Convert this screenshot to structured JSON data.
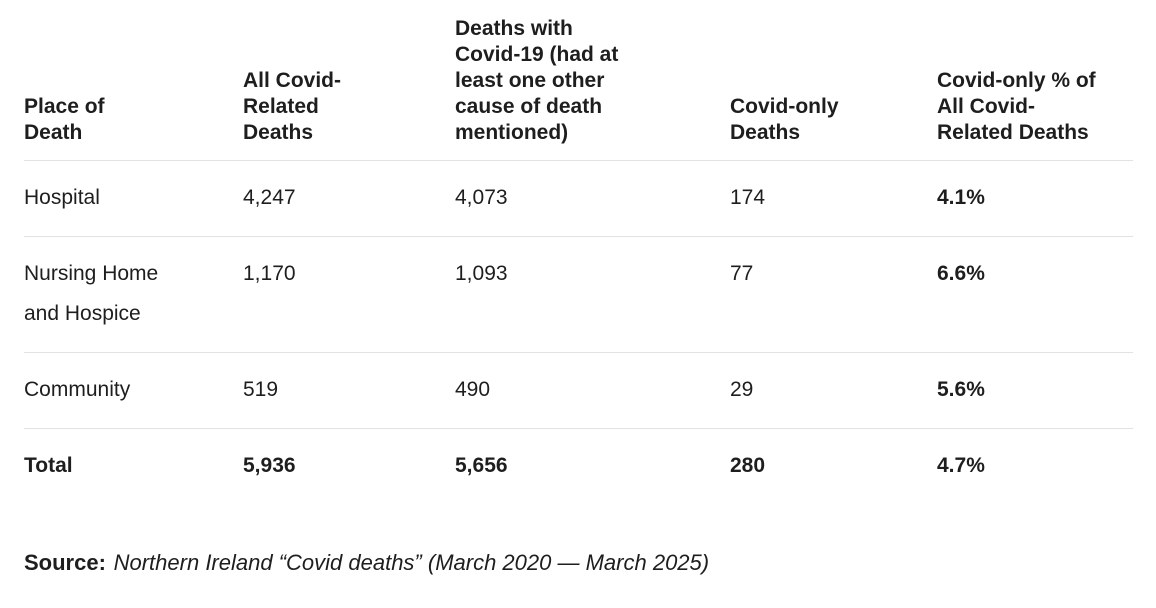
{
  "table": {
    "columns": [
      {
        "label": "Place of\nDeath"
      },
      {
        "label": "All Covid-\nRelated\nDeaths"
      },
      {
        "label": "Deaths with\nCovid-19 (had at\nleast one other\ncause of death\nmentioned)"
      },
      {
        "label": "Covid-only\nDeaths"
      },
      {
        "label": "Covid-only % of\nAll Covid-\nRelated Deaths"
      }
    ],
    "rows": [
      {
        "place": "Hospital",
        "all_covid_related": "4,247",
        "deaths_with_covid": "4,073",
        "covid_only": "174",
        "covid_only_pct": "4.1%"
      },
      {
        "place": "Nursing Home\nand Hospice",
        "all_covid_related": "1,170",
        "deaths_with_covid": "1,093",
        "covid_only": "77",
        "covid_only_pct": "6.6%"
      },
      {
        "place": "Community",
        "all_covid_related": "519",
        "deaths_with_covid": "490",
        "covid_only": "29",
        "covid_only_pct": "5.6%"
      },
      {
        "place": "Total",
        "all_covid_related": "5,936",
        "deaths_with_covid": "5,656",
        "covid_only": "280",
        "covid_only_pct": "4.7%"
      }
    ]
  },
  "source": {
    "label": "Source:",
    "text": "Northern Ireland “Covid deaths” (March 2020 — March 2025)"
  },
  "colors": {
    "text": "#1e1e1e",
    "divider": "#e2e2e2",
    "background": "#ffffff"
  },
  "chart_data": {
    "type": "table",
    "title": "",
    "columns": [
      "Place of Death",
      "All Covid-Related Deaths",
      "Deaths with Covid-19 (had at least one other cause of death mentioned)",
      "Covid-only Deaths",
      "Covid-only % of All Covid-Related Deaths"
    ],
    "rows": [
      [
        "Hospital",
        4247,
        4073,
        174,
        "4.1%"
      ],
      [
        "Nursing Home and Hospice",
        1170,
        1093,
        77,
        "6.6%"
      ],
      [
        "Community",
        519,
        490,
        29,
        "5.6%"
      ],
      [
        "Total",
        5936,
        5656,
        280,
        "4.7%"
      ]
    ],
    "source_note": "Source: Northern Ireland “Covid deaths” (March 2020 — March 2025)"
  }
}
